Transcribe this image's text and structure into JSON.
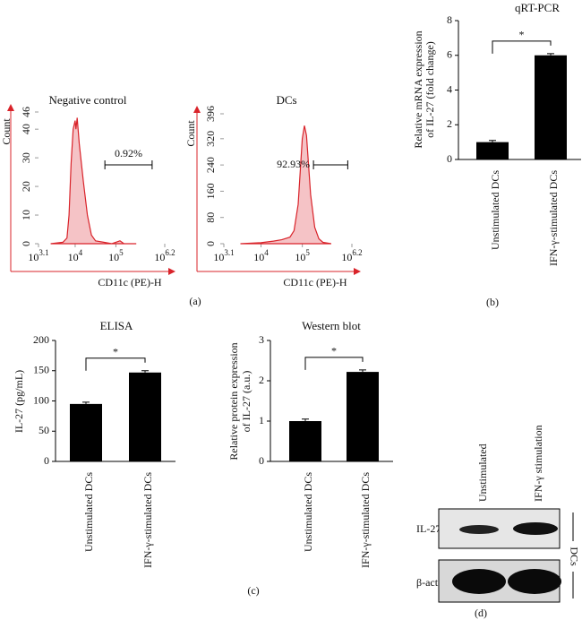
{
  "chart_data": [
    {
      "type": "flow",
      "title": "Negative control",
      "xlabel": "CD11c (PE)-H",
      "ylabel": "Count",
      "xscale": "log",
      "xlim": [
        1258.9,
        1584893
      ],
      "xticks": [
        {
          "value": 1258.9,
          "label": "10",
          "exponent": "3.1"
        },
        {
          "value": 10000,
          "label": "10",
          "exponent": "4"
        },
        {
          "value": 100000,
          "label": "10",
          "exponent": "5"
        },
        {
          "value": 1584893,
          "label": "10",
          "exponent": "6.2"
        }
      ],
      "ylim": [
        0,
        46
      ],
      "yticks": [
        0,
        10,
        20,
        30,
        40,
        46
      ],
      "color": "#d9232a",
      "x": [
        2512,
        5012,
        6310,
        7079,
        7943,
        8913,
        10000,
        10471,
        11220,
        12589,
        15849,
        19953,
        25119,
        31623,
        50119,
        79433,
        125893,
        158489,
        316228
      ],
      "values": [
        0,
        0.5,
        2,
        10,
        28,
        40,
        43,
        40,
        44,
        35,
        22,
        10,
        3,
        1,
        0.5,
        0,
        1,
        0,
        0
      ],
      "gate": {
        "label": "0.92%",
        "x": [
          53703,
          776247
        ]
      }
    },
    {
      "type": "flow",
      "title": "DCs",
      "xlabel": "CD11c (PE)-H",
      "ylabel": "Count",
      "xscale": "log",
      "xlim": [
        1258.9,
        1584893
      ],
      "xticks": [
        {
          "value": 1258.9,
          "label": "10",
          "exponent": "3.1"
        },
        {
          "value": 10000,
          "label": "10",
          "exponent": "4"
        },
        {
          "value": 100000,
          "label": "10",
          "exponent": "5"
        },
        {
          "value": 1584893,
          "label": "10",
          "exponent": "6.2"
        }
      ],
      "ylim": [
        0,
        396
      ],
      "yticks": [
        0,
        80,
        160,
        240,
        320,
        396
      ],
      "color": "#d9232a",
      "x": [
        3162,
        10000,
        19953,
        31623,
        50119,
        63096,
        79433,
        89125,
        100000,
        112202,
        125893,
        141254,
        158489,
        199526,
        251189,
        316228,
        501187
      ],
      "values": [
        0,
        3,
        8,
        12,
        20,
        40,
        120,
        220,
        320,
        360,
        330,
        240,
        150,
        50,
        15,
        4,
        0
      ],
      "gate": {
        "label": "92.93%",
        "x": [
          186209,
          1258925
        ]
      }
    },
    {
      "type": "bar",
      "title": "qRT-PCR",
      "ylabel": [
        "Relative mRNA expression",
        "of IL-27 (fold change)"
      ],
      "categories": [
        "Unstimulated DCs",
        "IFN-γ-stimulated DCs"
      ],
      "values": [
        1.0,
        6.0
      ],
      "errors": [
        0.1,
        0.1
      ],
      "color": "#000000",
      "ylim": [
        0,
        8
      ],
      "yticks": [
        0,
        2,
        4,
        6,
        8
      ],
      "annotation": "*"
    },
    {
      "type": "bar",
      "title": "ELISA",
      "ylabel": [
        "IL-27 (pg/mL)"
      ],
      "categories": [
        "Unstimulated DCs",
        "IFN-γ-stimulated DCs"
      ],
      "values": [
        95,
        147
      ],
      "errors": [
        3,
        3
      ],
      "color": "#000000",
      "ylim": [
        0,
        200
      ],
      "yticks": [
        0,
        50,
        100,
        150,
        200
      ],
      "annotation": "*"
    },
    {
      "type": "bar",
      "title": "Western blot",
      "ylabel": [
        "Relative protein expression",
        "of IL-27 (a.u.)"
      ],
      "categories": [
        "Unstimulated DCs",
        "IFN-γ-stimulated DCs"
      ],
      "values": [
        1.0,
        2.22
      ],
      "errors": [
        0.05,
        0.05
      ],
      "color": "#000000",
      "ylim": [
        0,
        3
      ],
      "yticks": [
        0,
        1,
        2,
        3
      ],
      "annotation": "*"
    }
  ],
  "blot": {
    "lanes": [
      "Unstimulated",
      "IFN-γ stimulation"
    ],
    "rows": [
      "IL-27",
      "β-actin"
    ],
    "group": "DCs"
  },
  "panel_labels": [
    "(a)",
    "(b)",
    "(c)",
    "(d)"
  ]
}
